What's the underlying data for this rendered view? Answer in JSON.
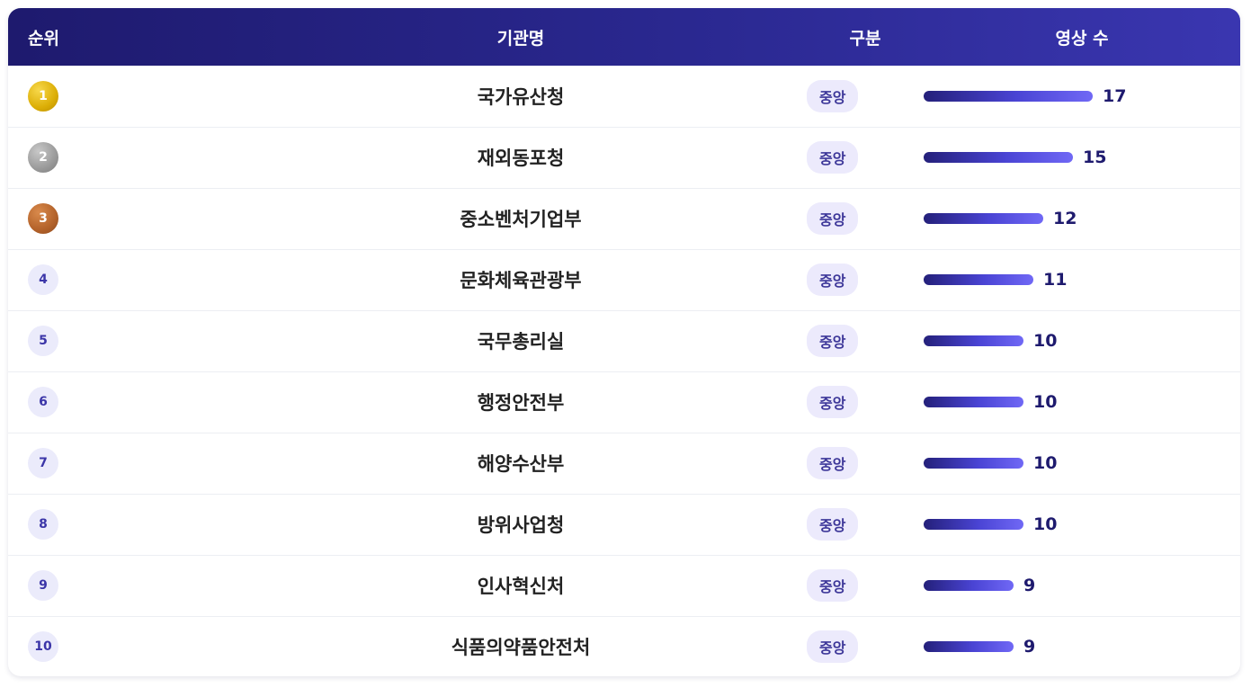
{
  "header": {
    "rank": "순위",
    "name": "기관명",
    "type": "구분",
    "count": "영상 수"
  },
  "max_count": 17,
  "rows": [
    {
      "rank": "1",
      "name": "국가유산청",
      "type": "중앙",
      "count": 17,
      "medal": "gold"
    },
    {
      "rank": "2",
      "name": "재외동포청",
      "type": "중앙",
      "count": 15,
      "medal": "silver"
    },
    {
      "rank": "3",
      "name": "중소벤처기업부",
      "type": "중앙",
      "count": 12,
      "medal": "bronze"
    },
    {
      "rank": "4",
      "name": "문화체육관광부",
      "type": "중앙",
      "count": 11,
      "medal": ""
    },
    {
      "rank": "5",
      "name": "국무총리실",
      "type": "중앙",
      "count": 10,
      "medal": ""
    },
    {
      "rank": "6",
      "name": "행정안전부",
      "type": "중앙",
      "count": 10,
      "medal": ""
    },
    {
      "rank": "7",
      "name": "해양수산부",
      "type": "중앙",
      "count": 10,
      "medal": ""
    },
    {
      "rank": "8",
      "name": "방위사업청",
      "type": "중앙",
      "count": 10,
      "medal": ""
    },
    {
      "rank": "9",
      "name": "인사혁신처",
      "type": "중앙",
      "count": 9,
      "medal": ""
    },
    {
      "rank": "10",
      "name": "식품의약품안전처",
      "type": "중앙",
      "count": 9,
      "medal": ""
    }
  ]
}
